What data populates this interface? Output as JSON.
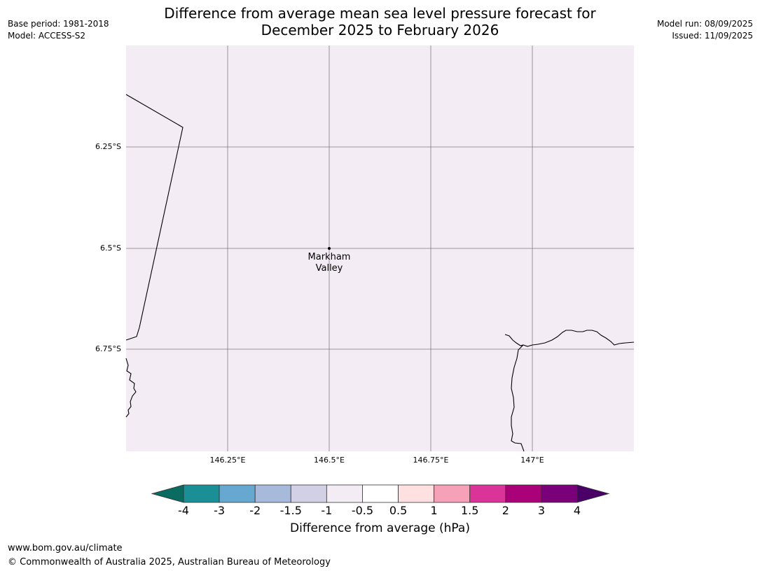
{
  "header": {
    "base_period": "Base period: 1981-2018",
    "model": "Model: ACCESS-S2",
    "model_run": "Model run: 08/09/2025",
    "issued": "Issued: 11/09/2025",
    "title_line1": "Difference from average mean sea level pressure forecast for",
    "title_line2": "December 2025 to February 2026"
  },
  "map": {
    "background_color": "#f4ecf5",
    "lat_labels": [
      "6.25°S",
      "6.5°S",
      "6.75°S"
    ],
    "lon_labels": [
      "146.25°E",
      "146.5°E",
      "146.75°E",
      "147°E"
    ],
    "location": {
      "name_line1": "Markham",
      "name_line2": "Valley",
      "lat": -6.5,
      "lon": 146.5
    },
    "extent": {
      "lon_min": 146.0,
      "lon_max": 147.25,
      "lat_min": -7.0,
      "lat_max": -6.0
    }
  },
  "colorbar": {
    "label": "Difference from average (hPa)",
    "ticks": [
      "-4",
      "-3",
      "-2",
      "-1.5",
      "-1",
      "-0.5",
      "0.5",
      "1",
      "1.5",
      "2",
      "3",
      "4"
    ],
    "under_color": "#0a6b61",
    "over_color": "#4b0068",
    "colors": [
      "#1a9096",
      "#66a8d0",
      "#a8badb",
      "#d2d0e4",
      "#f4ecf5",
      "#ffffff",
      "#fde0df",
      "#f7a1b8",
      "#db3498",
      "#aa0078",
      "#7a0079"
    ]
  },
  "footer": {
    "url": "www.bom.gov.au/climate",
    "copyright": "© Commonwealth of Australia 2025, Australian Bureau of Meteorology"
  }
}
